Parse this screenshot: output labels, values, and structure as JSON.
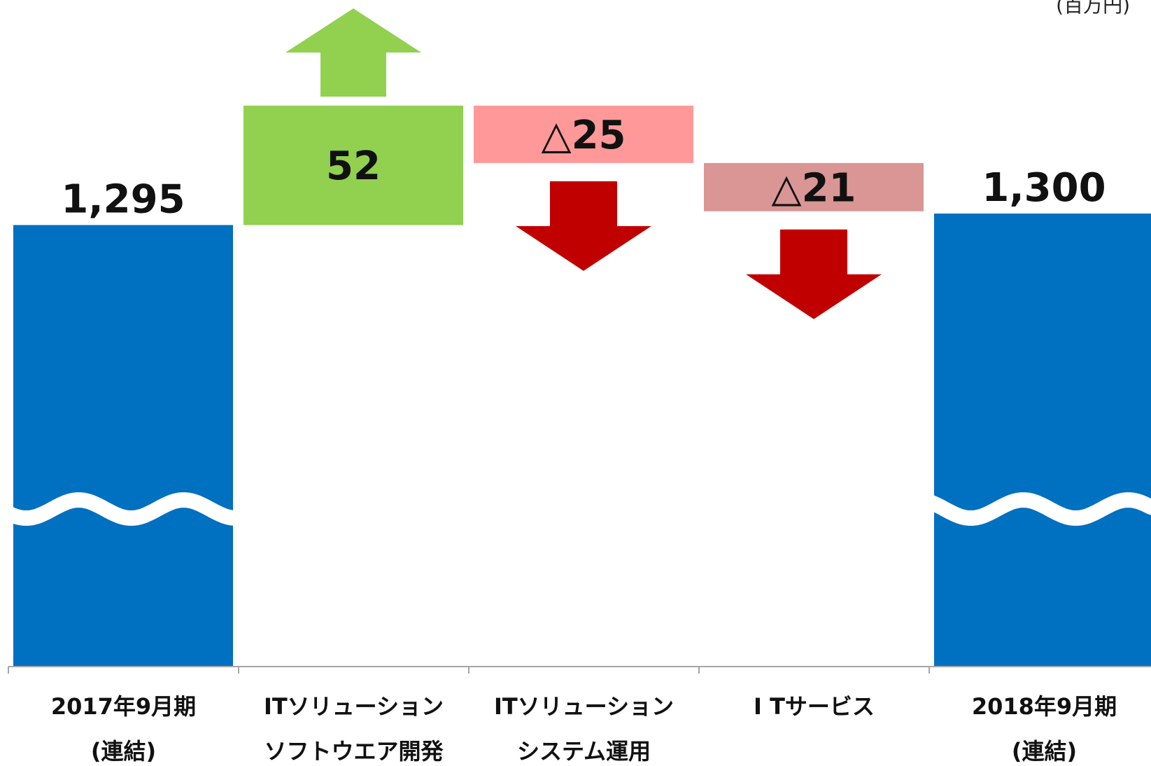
{
  "unit_label": "(百万円)",
  "chart_data": {
    "type": "bar",
    "subtype": "waterfall",
    "axis_break": true,
    "categories": [
      [
        "2017年9月期",
        "(連結)"
      ],
      [
        "ITソリューション",
        "ソフトウエア開発"
      ],
      [
        "ITソリューション",
        "システム運用"
      ],
      [
        "I Tサービス",
        ""
      ],
      [
        "2018年9月期",
        "(連結)"
      ]
    ],
    "values": [
      1295,
      52,
      -25,
      -21,
      1300
    ],
    "labels": [
      "1,295",
      "52",
      "△25",
      "△21",
      "1,300"
    ],
    "kinds": [
      "total",
      "increase",
      "decrease",
      "decrease",
      "total"
    ],
    "colors": {
      "total": "#0070c0",
      "increase": "#92d050",
      "decrease_1": "#ff9999",
      "decrease_2": "#d99694",
      "up_arrow": "#92d050",
      "down_arrow": "#c00000",
      "axis": "#a6a6a6"
    },
    "icons": [
      "up-arrow-icon",
      "down-arrow-icon",
      "axis-break-wave"
    ]
  }
}
